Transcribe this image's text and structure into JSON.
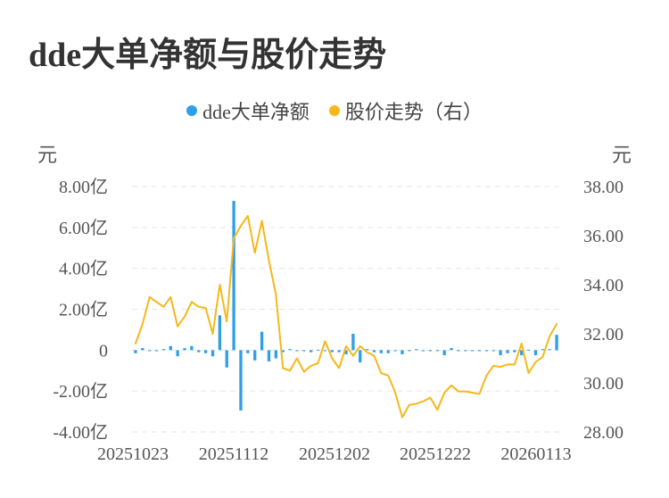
{
  "title": "dde大单净额与股价走势",
  "legend": {
    "bars_label": "dde大单净额",
    "line_label": "股价走势（右）"
  },
  "axes": {
    "left_unit": "元",
    "right_unit": "元"
  },
  "colors": {
    "bar": "#2f9fe8",
    "line": "#f5b81b",
    "grid": "#e6e6e6"
  },
  "chart_data": {
    "type": "bar+line",
    "title": "dde大单净额与股价走势",
    "legend_position": "top-center",
    "grid": true,
    "x_ticks": [
      "20251023",
      "20251112",
      "20251202",
      "20251222",
      "20260113"
    ],
    "y_left": {
      "unit": "元",
      "lim": [
        -4.0,
        8.0
      ],
      "ticks": [
        "8.00亿",
        "6.00亿",
        "4.00亿",
        "2.00亿",
        "0",
        "-2.00亿",
        "-4.00亿"
      ],
      "tick_values": [
        8,
        6,
        4,
        2,
        0,
        -2,
        -4
      ]
    },
    "y_right": {
      "unit": "元",
      "lim": [
        28.0,
        38.0
      ],
      "ticks": [
        "38.00",
        "36.00",
        "34.00",
        "32.00",
        "30.00",
        "28.00"
      ],
      "tick_values": [
        38,
        36,
        34,
        32,
        30,
        28
      ]
    },
    "series": [
      {
        "name": "dde大单净额",
        "type": "bar",
        "axis": "left",
        "values": [
          -0.15,
          0.1,
          -0.05,
          -0.05,
          0.05,
          0.2,
          -0.3,
          0.1,
          0.2,
          -0.1,
          -0.15,
          -0.3,
          1.7,
          -0.85,
          7.3,
          -2.95,
          -0.15,
          -0.5,
          0.9,
          -0.55,
          -0.4,
          -0.1,
          0.05,
          -0.05,
          -0.05,
          -0.1,
          0.02,
          -0.05,
          -0.1,
          -0.1,
          -0.2,
          0.8,
          -0.6,
          0.05,
          -0.1,
          -0.15,
          -0.15,
          -0.05,
          -0.2,
          -0.05,
          0.05,
          -0.05,
          -0.05,
          -0.05,
          -0.25,
          0.1,
          -0.05,
          -0.05,
          -0.05,
          -0.05,
          -0.05,
          -0.05,
          -0.25,
          -0.15,
          -0.1,
          -0.25,
          0.02,
          -0.25,
          0.05,
          0.05,
          0.75
        ]
      },
      {
        "name": "股价走势（右）",
        "type": "line",
        "axis": "right",
        "values": [
          31.6,
          32.4,
          33.5,
          33.3,
          33.1,
          33.5,
          32.3,
          32.7,
          33.3,
          33.1,
          33.05,
          32.0,
          34.0,
          32.5,
          35.9,
          36.4,
          36.8,
          35.3,
          36.6,
          35.0,
          33.6,
          30.6,
          30.5,
          31.0,
          30.45,
          30.7,
          30.8,
          31.7,
          31.0,
          30.6,
          31.5,
          31.1,
          31.5,
          31.25,
          31.1,
          30.4,
          30.3,
          29.6,
          28.6,
          29.1,
          29.15,
          29.25,
          29.4,
          28.9,
          29.6,
          29.9,
          29.65,
          29.65,
          29.6,
          29.55,
          30.3,
          30.7,
          30.65,
          30.75,
          30.75,
          31.6,
          30.4,
          30.85,
          31.05,
          31.9,
          32.4
        ]
      }
    ]
  }
}
